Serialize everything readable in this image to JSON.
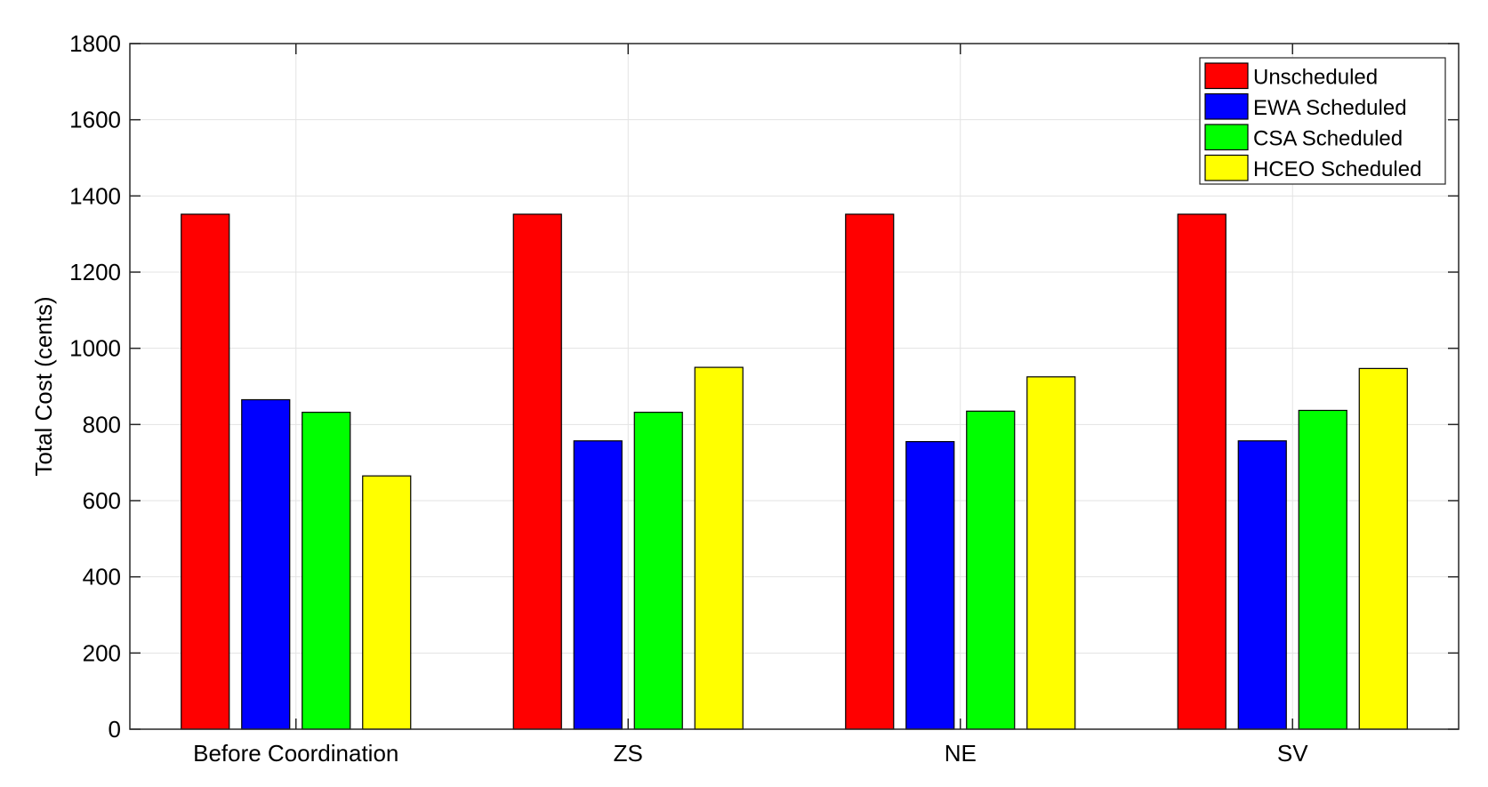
{
  "chart_data": {
    "type": "bar",
    "title": "",
    "xlabel": "",
    "ylabel": "Total Cost (cents)",
    "ylim": [
      0,
      1800
    ],
    "yticks": [
      0,
      200,
      400,
      600,
      800,
      1000,
      1200,
      1400,
      1600,
      1800
    ],
    "grid": true,
    "legend_position": "top-right",
    "categories": [
      "Before Coordination",
      "ZS",
      "NE",
      "SV"
    ],
    "series": [
      {
        "name": "Unscheduled",
        "color": "#ff0000",
        "values": [
          1352,
          1352,
          1352,
          1352
        ]
      },
      {
        "name": "EWA Scheduled",
        "color": "#0000ff",
        "values": [
          865,
          757,
          755,
          757
        ]
      },
      {
        "name": "CSA Scheduled",
        "color": "#00ff00",
        "values": [
          832,
          832,
          835,
          837
        ]
      },
      {
        "name": "HCEO Scheduled",
        "color": "#ffff00",
        "values": [
          665,
          950,
          925,
          947
        ]
      }
    ]
  }
}
